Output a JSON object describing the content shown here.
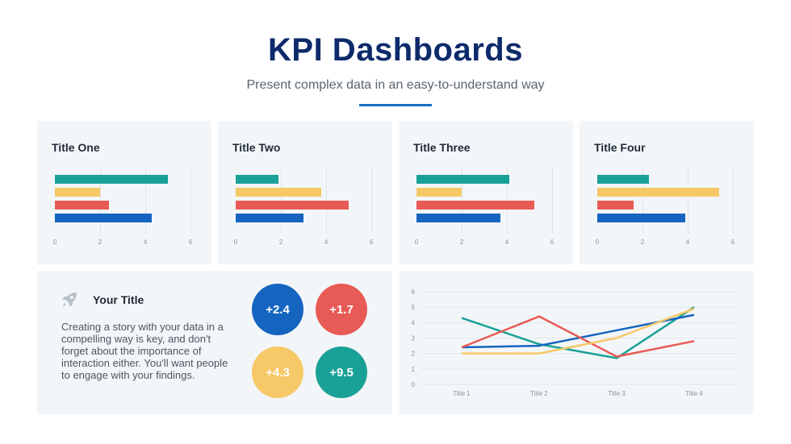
{
  "header": {
    "title": "KPI Dashboards",
    "subtitle": "Present complex data in an easy-to-understand way"
  },
  "colors": {
    "teal": "#1aa197",
    "yellow": "#f6c867",
    "red": "#e85a55",
    "blue": "#1565c0",
    "navy": "#0d2a6b"
  },
  "chart_data": [
    {
      "type": "bar",
      "title": "Title One",
      "xlim": [
        0,
        6
      ],
      "xticks": [
        "0",
        "2",
        "4",
        "6"
      ],
      "values": [
        5.0,
        2.0,
        2.4,
        4.3
      ]
    },
    {
      "type": "bar",
      "title": "Title Two",
      "xlim": [
        0,
        6
      ],
      "xticks": [
        "0",
        "2",
        "4",
        "6"
      ],
      "values": [
        1.9,
        3.8,
        5.0,
        3.0
      ]
    },
    {
      "type": "bar",
      "title": "Title Three",
      "xlim": [
        0,
        6
      ],
      "xticks": [
        "0",
        "2",
        "4",
        "6"
      ],
      "values": [
        4.1,
        2.0,
        5.2,
        3.7
      ]
    },
    {
      "type": "bar",
      "title": "Title Four",
      "xlim": [
        0,
        6
      ],
      "xticks": [
        "0",
        "2",
        "4",
        "6"
      ],
      "values": [
        2.3,
        5.4,
        1.6,
        3.9
      ]
    },
    {
      "type": "line",
      "categories": [
        "Title 1",
        "Title 2",
        "Title 3",
        "Title 4"
      ],
      "ylim": [
        0,
        6
      ],
      "yticks": [
        "0",
        "1",
        "2",
        "3",
        "4",
        "5",
        "6"
      ],
      "series": [
        {
          "name": "teal",
          "values": [
            4.3,
            2.6,
            1.7,
            5.0
          ]
        },
        {
          "name": "blue",
          "values": [
            2.4,
            2.5,
            3.5,
            4.5
          ]
        },
        {
          "name": "red",
          "values": [
            2.4,
            4.4,
            1.8,
            2.8
          ]
        },
        {
          "name": "yellow",
          "values": [
            2.0,
            2.0,
            3.0,
            4.9
          ]
        }
      ]
    }
  ],
  "info": {
    "title": "Your Title",
    "body": "Creating a story with your data in a compelling way is key, and don't forget about the importance of interaction either. You'll want people to engage with your findings.",
    "icon": "rocket-icon",
    "kpis": [
      "+2.4",
      "+1.7",
      "+4.3",
      "+9.5"
    ]
  }
}
